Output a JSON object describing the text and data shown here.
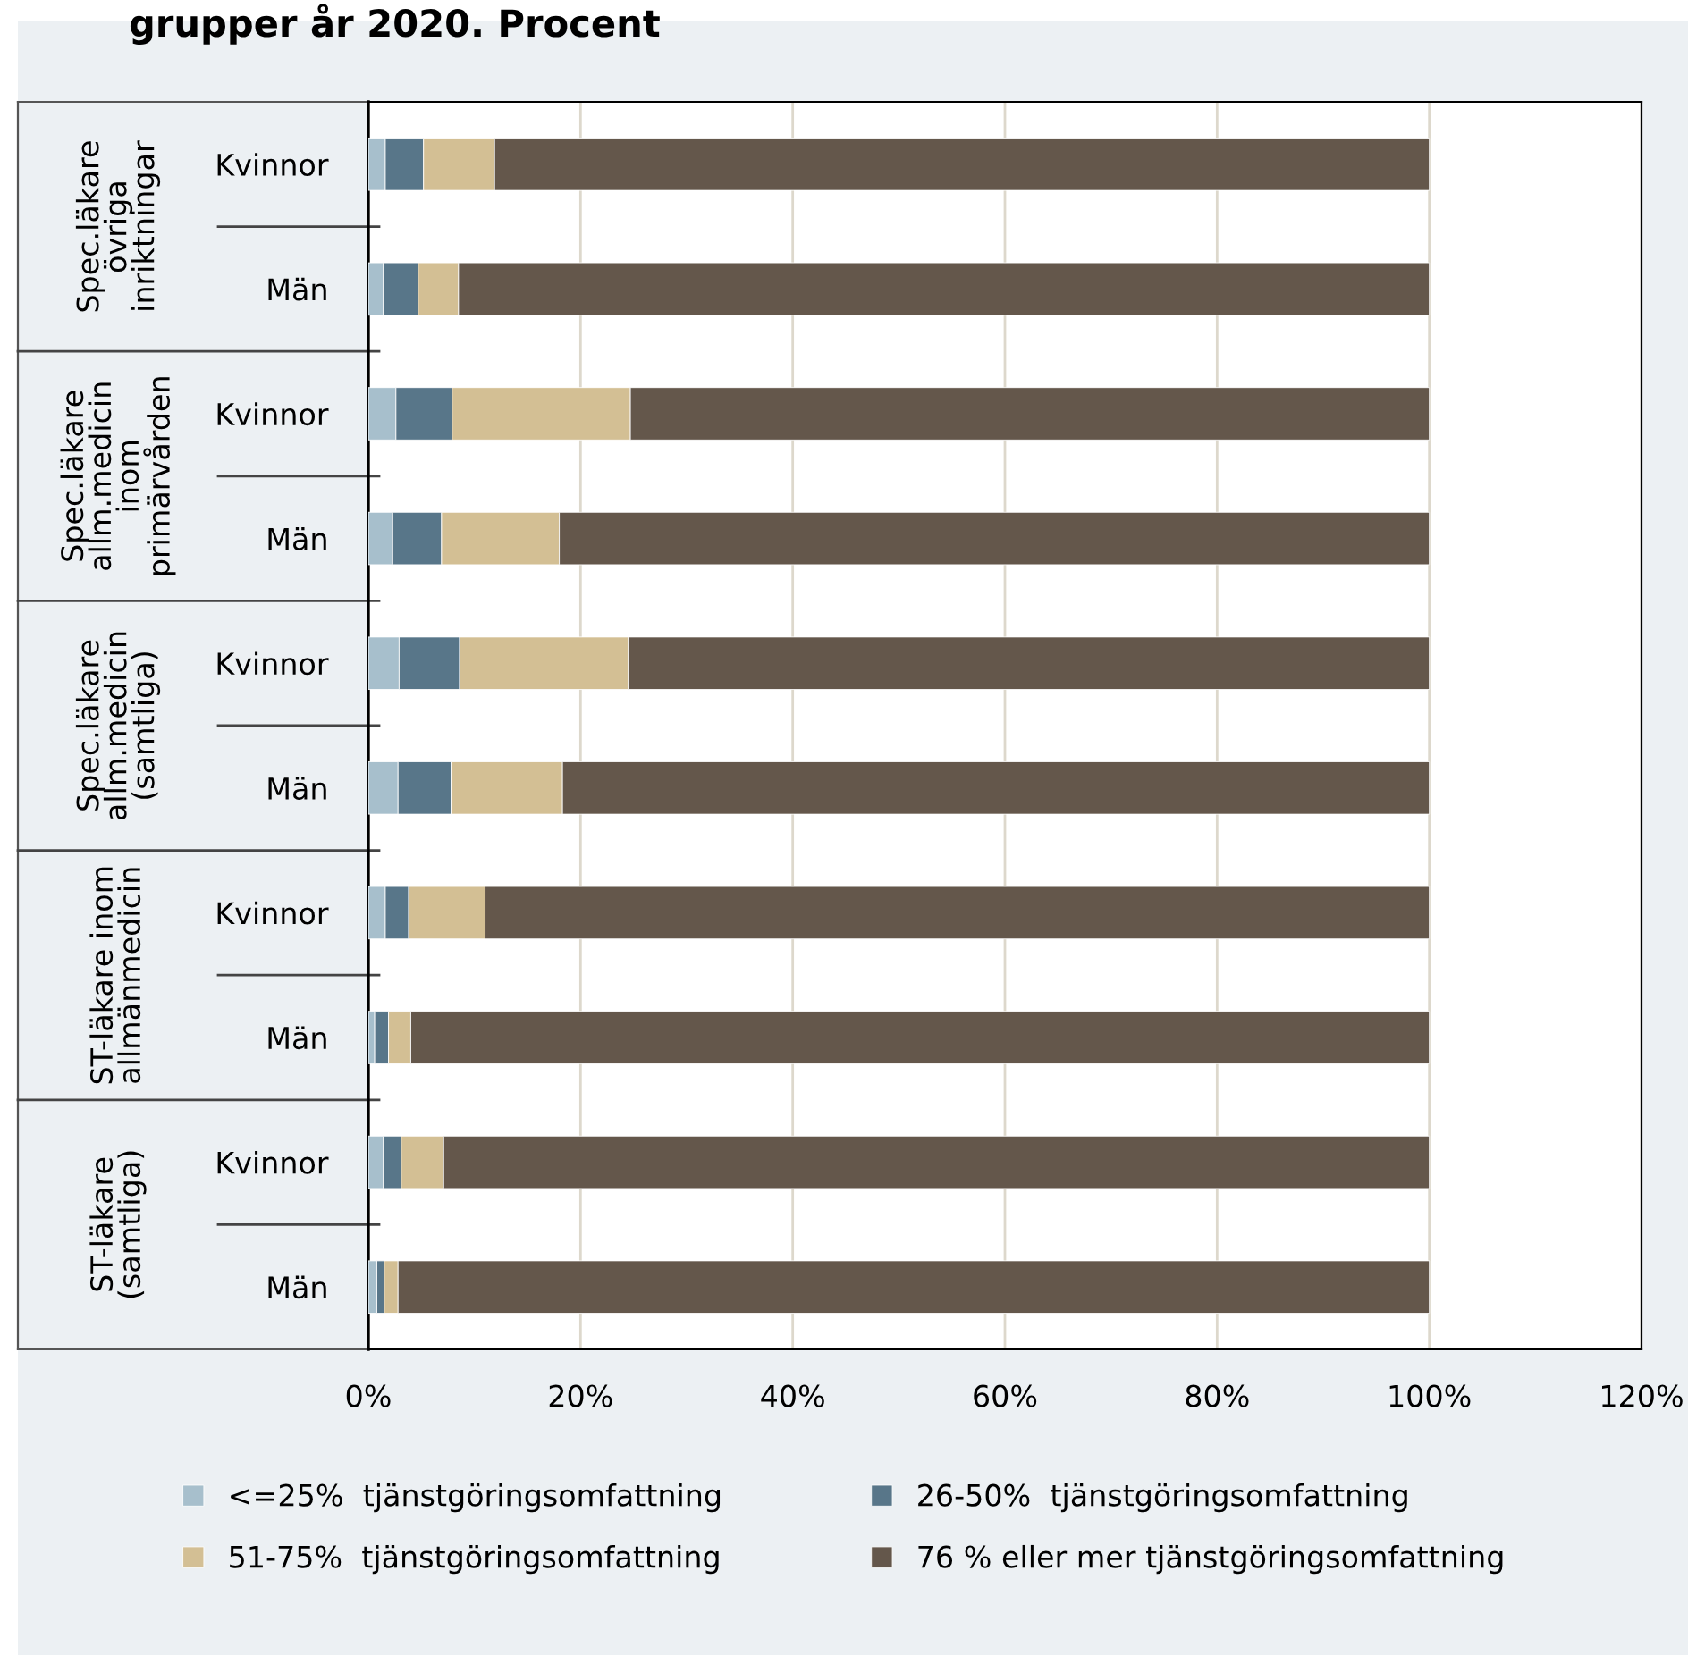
{
  "chart_data": {
    "type": "bar",
    "orientation": "horizontal",
    "stacked": true,
    "title": "grupper år 2020. Procent",
    "categories": [
      "Kvinnor",
      "Män",
      "Kvinnor",
      "Män",
      "Kvinnor",
      "Män",
      "Kvinnor",
      "Män",
      "Kvinnor",
      "Män"
    ],
    "annotations": [
      "Spec.läkare\növriga\ninriktningar",
      "Spec.läkare\nallm.medicin\ninom\nprimärvården",
      "Spec.läkare\nallm.medicin\n(samtliga)",
      "ST-läkare inom\nallmänmedicin",
      "ST-läkare\n(samtliga)"
    ],
    "series": [
      {
        "name": "<=25%  tjänstgöringsomfattning",
        "color": "#a7bfcc",
        "values": [
          1.6,
          1.4,
          2.6,
          2.3,
          2.9,
          2.8,
          1.6,
          0.6,
          1.4,
          0.8
        ]
      },
      {
        "name": "26-50%  tjänstgöringsomfattning",
        "color": "#587689",
        "values": [
          3.6,
          3.3,
          5.3,
          4.6,
          5.7,
          5.0,
          2.2,
          1.3,
          1.7,
          0.7
        ]
      },
      {
        "name": "51-75%  tjänstgöringsomfattning",
        "color": "#d3bf94",
        "values": [
          6.7,
          3.8,
          16.8,
          11.1,
          15.9,
          10.5,
          7.2,
          2.1,
          4.0,
          1.3
        ]
      },
      {
        "name": "76 % eller mer tjänstgöringsomfattning",
        "color": "#64574b",
        "values": [
          88.1,
          91.5,
          75.3,
          82.0,
          75.5,
          81.7,
          89.0,
          96.0,
          92.9,
          97.2
        ]
      }
    ],
    "xlim": [
      0,
      120
    ],
    "xticks": [
      {
        "value": 0,
        "label": "0%"
      },
      {
        "value": 20,
        "label": "20%"
      },
      {
        "value": 40,
        "label": "40%"
      },
      {
        "value": 60,
        "label": "60%"
      },
      {
        "value": 80,
        "label": "80%"
      },
      {
        "value": 100,
        "label": "100%"
      },
      {
        "value": 120,
        "label": "120%"
      }
    ],
    "grid": "x",
    "legend": "bottom"
  }
}
